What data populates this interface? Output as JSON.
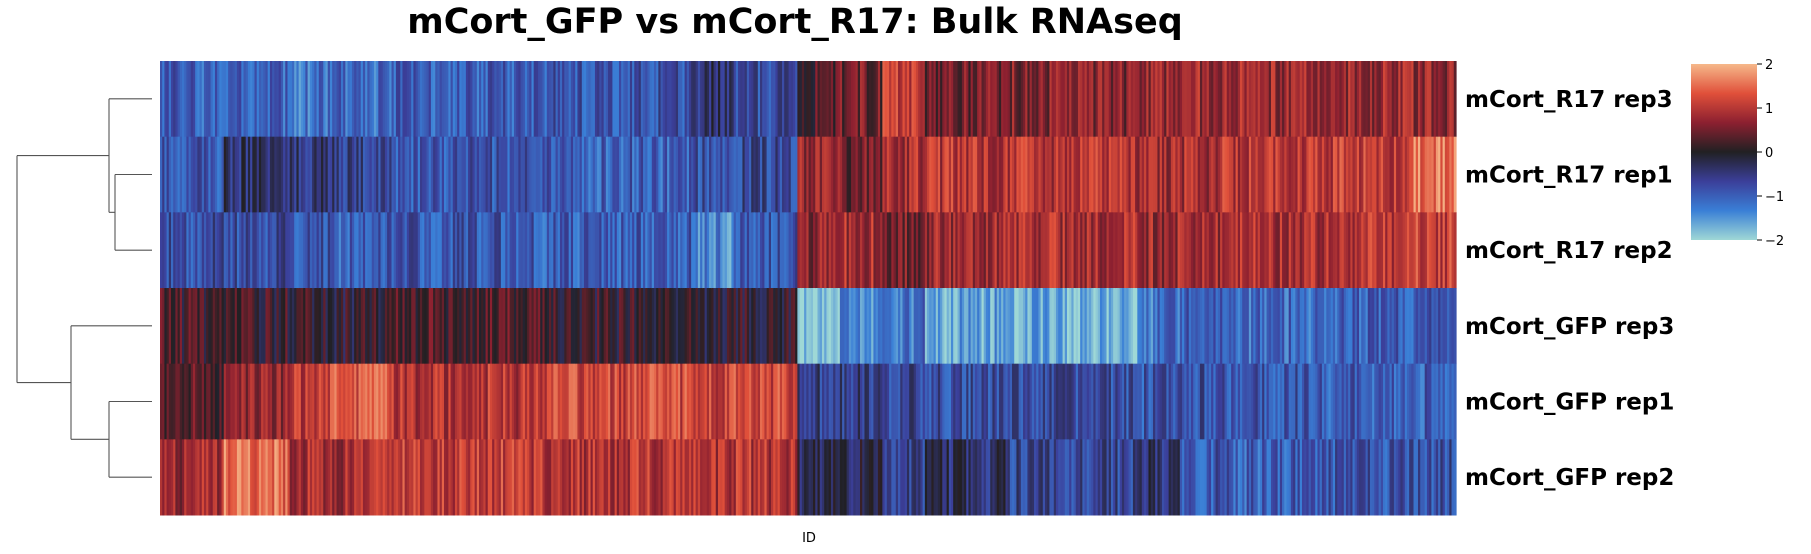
{
  "chart_data": {
    "type": "heatmap",
    "title": "mCort_GFP vs mCort_R17: Bulk RNAseq",
    "xlabel": "ID",
    "rows": [
      "mCort_R17 rep3",
      "mCort_R17 rep1",
      "mCort_R17 rep2",
      "mCort_GFP rep3",
      "mCort_GFP rep1",
      "mCort_GFP rep2"
    ],
    "colorbar": {
      "range": [
        -2,
        2
      ],
      "ticks": [
        "2",
        "1",
        "0",
        "−1",
        "−2"
      ],
      "tick_values": [
        2,
        1,
        0,
        -1,
        -2
      ]
    },
    "colormap_stops": [
      "#9fd8d6",
      "#3a7fd6",
      "#3b3f9a",
      "#212023",
      "#8c2030",
      "#e0503a",
      "#f6b88a"
    ],
    "row_dendrogram": "left",
    "column_segments": [
      {
        "ids": 60,
        "values": [
          -1.0,
          -0.9,
          -0.8,
          0.2,
          0.3,
          0.8
        ]
      },
      {
        "ids": 60,
        "values": [
          -1.1,
          -0.4,
          -0.8,
          0.1,
          0.8,
          1.5
        ]
      },
      {
        "ids": 40,
        "values": [
          -1.2,
          -0.5,
          -0.9,
          0.1,
          1.1,
          0.9
        ]
      },
      {
        "ids": 60,
        "values": [
          -1.1,
          -0.6,
          -1.0,
          0.0,
          1.3,
          0.9
        ]
      },
      {
        "ids": 140,
        "values": [
          -1.0,
          -0.9,
          -0.9,
          0.3,
          1.0,
          1.1
        ]
      },
      {
        "ids": 140,
        "values": [
          -0.9,
          -1.0,
          -1.0,
          0.1,
          1.2,
          1.0
        ]
      },
      {
        "ids": 40,
        "values": [
          -0.4,
          -0.8,
          -1.4,
          0.0,
          1.1,
          1.0
        ]
      },
      {
        "ids": 60,
        "values": [
          -0.8,
          -0.7,
          -0.9,
          0.0,
          1.2,
          1.0
        ]
      },
      {
        "ids": 40,
        "values": [
          0.3,
          0.7,
          0.7,
          -1.9,
          -0.6,
          -0.2
        ]
      },
      {
        "ids": 40,
        "values": [
          0.5,
          0.5,
          0.9,
          -1.4,
          -0.6,
          -0.3
        ]
      },
      {
        "ids": 40,
        "values": [
          1.1,
          0.9,
          0.5,
          -1.2,
          -0.7,
          -0.6
        ]
      },
      {
        "ids": 80,
        "values": [
          0.5,
          1.0,
          0.8,
          -1.6,
          -0.8,
          -0.4
        ]
      },
      {
        "ids": 120,
        "values": [
          0.6,
          1.0,
          0.9,
          -1.7,
          -0.8,
          -0.7
        ]
      },
      {
        "ids": 40,
        "values": [
          0.7,
          0.8,
          0.8,
          -1.2,
          -0.9,
          -0.4
        ]
      },
      {
        "ids": 40,
        "values": [
          0.8,
          0.9,
          0.8,
          -1.0,
          -0.8,
          -0.9
        ]
      },
      {
        "ids": 100,
        "values": [
          0.8,
          1.0,
          0.9,
          -1.1,
          -0.9,
          -1.0
        ]
      },
      {
        "ids": 80,
        "values": [
          0.8,
          1.1,
          1.0,
          -1.0,
          -1.0,
          -0.9
        ]
      },
      {
        "ids": 40,
        "values": [
          0.7,
          1.5,
          1.1,
          -1.0,
          -1.0,
          -0.8
        ]
      }
    ]
  }
}
